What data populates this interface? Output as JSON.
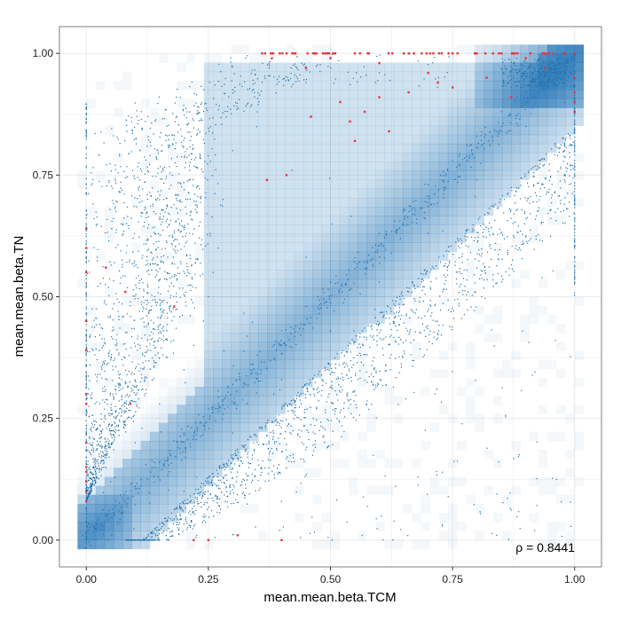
{
  "chart_data": {
    "type": "scatter",
    "title": "",
    "xlabel": "mean.mean.beta.TCM",
    "ylabel": "mean.mean.beta.TN",
    "xlim": [
      -0.055,
      1.055
    ],
    "ylim": [
      -0.055,
      1.055
    ],
    "x_ticks": [
      0.0,
      0.25,
      0.5,
      0.75,
      1.0
    ],
    "y_ticks": [
      0.0,
      0.25,
      0.5,
      0.75,
      1.0
    ],
    "x_tick_labels": [
      "0.00",
      "0.25",
      "0.50",
      "0.75",
      "1.00"
    ],
    "y_tick_labels": [
      "0.00",
      "0.25",
      "0.50",
      "0.75",
      "1.00"
    ],
    "grid": true,
    "legend": "none",
    "annotation": "ρ = 0.8441",
    "colors": {
      "points": "#1f6fa8",
      "density_light": "#e3eef8",
      "density_dark": "#2b79b8",
      "outliers": "#e8343a",
      "panel_border": "#7f7f7f",
      "grid": "#ececec"
    },
    "series": [
      {
        "values": [
          [
            0.0,
            0.0
          ],
          [
            0.02,
            0.03
          ],
          [
            0.04,
            0.05
          ],
          [
            0.06,
            0.07
          ],
          [
            0.1,
            0.11
          ],
          [
            0.15,
            0.16
          ],
          [
            0.2,
            0.22
          ],
          [
            0.25,
            0.27
          ],
          [
            0.3,
            0.32
          ],
          [
            0.35,
            0.38
          ],
          [
            0.4,
            0.43
          ],
          [
            0.45,
            0.48
          ],
          [
            0.5,
            0.53
          ],
          [
            0.55,
            0.58
          ],
          [
            0.6,
            0.63
          ],
          [
            0.65,
            0.68
          ],
          [
            0.7,
            0.73
          ],
          [
            0.75,
            0.78
          ],
          [
            0.8,
            0.83
          ],
          [
            0.85,
            0.88
          ],
          [
            0.9,
            0.92
          ],
          [
            0.95,
            0.96
          ],
          [
            0.97,
            0.97
          ],
          [
            0.25,
            0.5
          ],
          [
            0.26,
            0.55
          ],
          [
            0.27,
            0.6
          ],
          [
            0.24,
            0.45
          ],
          [
            0.22,
            0.4
          ],
          [
            0.2,
            0.35
          ],
          [
            0.15,
            0.28
          ],
          [
            0.1,
            0.2
          ],
          [
            0.05,
            0.12
          ],
          [
            0.28,
            0.7
          ],
          [
            0.3,
            0.8
          ],
          [
            0.35,
            0.88
          ],
          [
            0.45,
            0.94
          ],
          [
            0.6,
            0.96
          ],
          [
            0.12,
            0.0
          ],
          [
            0.2,
            0.1
          ],
          [
            0.3,
            0.22
          ],
          [
            0.4,
            0.33
          ],
          [
            0.5,
            0.43
          ],
          [
            0.6,
            0.53
          ],
          [
            0.7,
            0.63
          ],
          [
            0.8,
            0.74
          ],
          [
            0.9,
            0.85
          ],
          [
            0.98,
            0.9
          ]
        ]
      },
      {
        "values": [
          [
            0.0,
            0.64
          ],
          [
            0.0,
            0.6
          ],
          [
            0.0,
            0.55
          ],
          [
            0.0,
            0.45
          ],
          [
            0.0,
            0.39
          ],
          [
            0.0,
            0.3
          ],
          [
            0.0,
            0.28
          ],
          [
            0.0,
            0.2
          ],
          [
            0.0,
            0.15
          ],
          [
            0.0,
            0.14
          ],
          [
            0.0,
            0.12
          ],
          [
            0.0,
            0.1
          ],
          [
            0.0,
            0.08
          ],
          [
            0.04,
            0.56
          ],
          [
            0.08,
            0.51
          ],
          [
            0.09,
            0.28
          ],
          [
            0.18,
            0.48
          ],
          [
            0.22,
            0.0
          ],
          [
            0.25,
            0.0
          ],
          [
            0.31,
            0.01
          ],
          [
            0.4,
            0.0
          ],
          [
            0.37,
            0.74
          ],
          [
            0.41,
            0.75
          ],
          [
            0.46,
            0.87
          ],
          [
            0.52,
            0.9
          ],
          [
            0.54,
            0.86
          ],
          [
            0.55,
            0.82
          ],
          [
            0.57,
            0.88
          ],
          [
            0.6,
            0.91
          ],
          [
            0.62,
            0.84
          ],
          [
            0.66,
            0.92
          ],
          [
            0.7,
            0.96
          ],
          [
            0.72,
            0.94
          ],
          [
            0.75,
            0.93
          ],
          [
            0.82,
            0.95
          ],
          [
            0.87,
            0.91
          ],
          [
            0.94,
            0.97
          ],
          [
            1.0,
            0.95
          ],
          [
            1.0,
            0.92
          ],
          [
            1.0,
            0.9
          ],
          [
            1.0,
            0.88
          ],
          [
            0.5,
            0.99
          ],
          [
            0.6,
            0.98
          ],
          [
            0.45,
            0.97
          ],
          [
            0.38,
            0.99
          ],
          [
            0.55,
            1.0
          ],
          [
            0.65,
            1.0
          ],
          [
            0.75,
            1.0
          ],
          [
            0.85,
            1.0
          ],
          [
            0.9,
            0.99
          ],
          [
            0.36,
            1.0
          ]
        ]
      }
    ]
  }
}
